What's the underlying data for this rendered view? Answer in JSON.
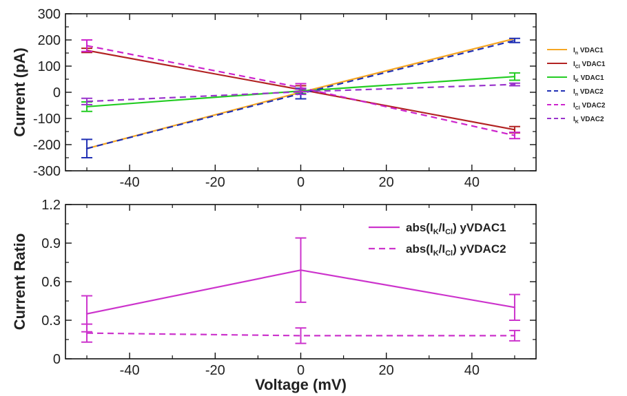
{
  "chart_data": [
    {
      "type": "line",
      "xlabel": "",
      "ylabel": "Current (pA)",
      "xlim": [
        -55,
        55
      ],
      "ylim": [
        -300,
        300
      ],
      "x_ticks": [
        -40,
        -20,
        0,
        20,
        40
      ],
      "y_ticks": [
        -300,
        -200,
        -100,
        0,
        100,
        200,
        300
      ],
      "grid": false,
      "legend_position": "right",
      "x": [
        -50,
        0,
        50
      ],
      "series": [
        {
          "name_main": "I",
          "name_sub": "n",
          "name_suffix": " VDAC1",
          "color": "#f5a623",
          "dash": false,
          "values": [
            -215,
            0,
            205
          ],
          "error": [
            0,
            0,
            0
          ]
        },
        {
          "name_main": "I",
          "name_sub": "Cl",
          "name_suffix": " VDAC1",
          "color": "#b22222",
          "dash": false,
          "values": [
            160,
            10,
            -143
          ],
          "error": [
            8,
            15,
            12
          ]
        },
        {
          "name_main": "I",
          "name_sub": "K",
          "name_suffix": " VDAC1",
          "color": "#22cc22",
          "dash": false,
          "values": [
            -55,
            5,
            60
          ],
          "error": [
            18,
            10,
            14
          ]
        },
        {
          "name_main": "I",
          "name_sub": "n",
          "name_suffix": "  VDAC2",
          "color": "#1f2fb4",
          "dash": true,
          "values": [
            -215,
            -5,
            198
          ],
          "error": [
            35,
            20,
            8
          ]
        },
        {
          "name_main": "I",
          "name_sub": "Cl",
          "name_suffix": " VDAC2",
          "color": "#cc22cc",
          "dash": true,
          "values": [
            178,
            18,
            -165
          ],
          "error": [
            22,
            15,
            12
          ]
        },
        {
          "name_main": "I",
          "name_sub": "K",
          "name_suffix": " VDAC2",
          "color": "#9933cc",
          "dash": true,
          "values": [
            -35,
            2,
            30
          ],
          "error": [
            12,
            10,
            5
          ]
        }
      ]
    },
    {
      "type": "line",
      "xlabel": "Voltage (mV)",
      "ylabel": "Current Ratio",
      "xlim": [
        -55,
        55
      ],
      "ylim": [
        0,
        1.2
      ],
      "x_ticks": [
        -40,
        -20,
        0,
        20,
        40
      ],
      "y_ticks": [
        0,
        0.3,
        0.6,
        0.9,
        1.2
      ],
      "y_tick_labels": [
        "0",
        "0.3",
        "0.6",
        "0.9",
        "1.2"
      ],
      "grid": false,
      "legend_position": "top-right",
      "x": [
        -50,
        0,
        50
      ],
      "series": [
        {
          "name_pre": "abs(I",
          "name_sub1": "K",
          "name_mid": "/I",
          "name_sub2": "Cl",
          "name_post": ") yVDAC1",
          "color": "#cc33cc",
          "dash": false,
          "values": [
            0.35,
            0.69,
            0.4
          ],
          "error": [
            0.14,
            0.25,
            0.1
          ]
        },
        {
          "name_pre": "abs(I",
          "name_sub1": "K",
          "name_mid": "/I",
          "name_sub2": "Cl",
          "name_post": ") yVDAC2",
          "color": "#cc33cc",
          "dash": true,
          "values": [
            0.2,
            0.18,
            0.18
          ],
          "error": [
            0.07,
            0.06,
            0.04
          ]
        }
      ]
    }
  ]
}
